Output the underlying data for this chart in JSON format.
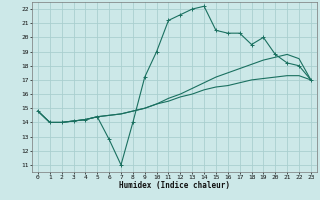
{
  "title": "",
  "xlabel": "Humidex (Indice chaleur)",
  "bg_color": "#cce8e8",
  "grid_color": "#aacfcf",
  "line_color": "#1a7060",
  "xlim": [
    -0.5,
    23.5
  ],
  "ylim": [
    10.5,
    22.5
  ],
  "xticks": [
    0,
    1,
    2,
    3,
    4,
    5,
    6,
    7,
    8,
    9,
    10,
    11,
    12,
    13,
    14,
    15,
    16,
    17,
    18,
    19,
    20,
    21,
    22,
    23
  ],
  "yticks": [
    11,
    12,
    13,
    14,
    15,
    16,
    17,
    18,
    19,
    20,
    21,
    22
  ],
  "curve1_x": [
    0,
    1,
    2,
    3,
    4,
    5,
    6,
    7,
    8,
    9,
    10,
    11,
    12,
    13,
    14,
    15,
    16,
    17,
    18,
    19,
    20,
    21,
    22,
    23
  ],
  "curve1_y": [
    14.8,
    14.0,
    14.0,
    14.1,
    14.2,
    14.4,
    12.8,
    11.0,
    14.0,
    17.2,
    19.0,
    21.2,
    21.6,
    22.0,
    22.2,
    20.5,
    20.3,
    20.3,
    19.5,
    20.0,
    18.8,
    18.2,
    18.0,
    17.0
  ],
  "curve2_x": [
    0,
    1,
    2,
    3,
    4,
    5,
    6,
    7,
    8,
    9,
    10,
    11,
    12,
    13,
    14,
    15,
    16,
    17,
    18,
    19,
    20,
    21,
    22,
    23
  ],
  "curve2_y": [
    14.8,
    14.0,
    14.0,
    14.1,
    14.2,
    14.4,
    14.5,
    14.6,
    14.8,
    15.0,
    15.3,
    15.7,
    16.0,
    16.4,
    16.8,
    17.2,
    17.5,
    17.8,
    18.1,
    18.4,
    18.6,
    18.8,
    18.5,
    17.0
  ],
  "curve3_x": [
    0,
    1,
    2,
    3,
    4,
    5,
    6,
    7,
    8,
    9,
    10,
    11,
    12,
    13,
    14,
    15,
    16,
    17,
    18,
    19,
    20,
    21,
    22,
    23
  ],
  "curve3_y": [
    14.8,
    14.0,
    14.0,
    14.1,
    14.2,
    14.4,
    14.5,
    14.6,
    14.8,
    15.0,
    15.3,
    15.5,
    15.8,
    16.0,
    16.3,
    16.5,
    16.6,
    16.8,
    17.0,
    17.1,
    17.2,
    17.3,
    17.3,
    17.0
  ],
  "xlabel_fontsize": 5.5,
  "tick_fontsize": 4.5,
  "linewidth": 0.8,
  "markersize": 3.0,
  "markeredgewidth": 0.7
}
